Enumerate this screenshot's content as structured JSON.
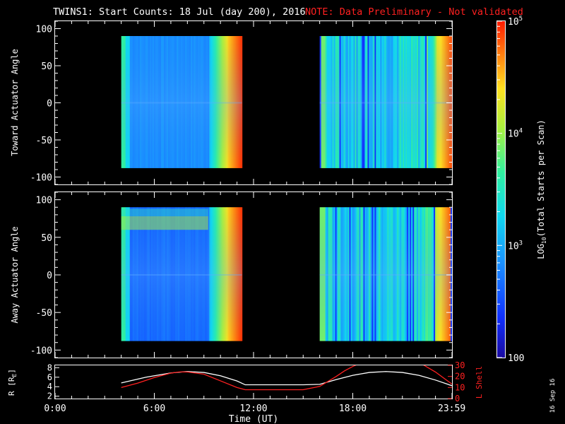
{
  "title": {
    "main": "TWINS1: Start Counts: 18 Jul (day 200), 2016",
    "note": "NOTE: Data Preliminary - Not validated"
  },
  "date_stamp": "16 Sep 16",
  "colors": {
    "note": "#ff2020",
    "axes": "#ffffff",
    "lshell": "#ff2020",
    "radius": "#ffffff",
    "background": "#000000"
  },
  "chart_data": [
    {
      "type": "heatmap",
      "ylabel": "Toward Actuator Angle",
      "xlim_hours": [
        0,
        24
      ],
      "ylim": [
        -110,
        110
      ],
      "yticks": [
        100,
        50,
        0,
        -50,
        -100
      ],
      "xtick_labels": [],
      "scale": "log",
      "data_blocks": [
        {
          "start_hour": 4.0,
          "end_hour": 11.3,
          "angle_range": [
            -88,
            90
          ]
        },
        {
          "start_hour": 16.0,
          "end_hour": 24.0,
          "angle_range": [
            -88,
            90
          ]
        }
      ]
    },
    {
      "type": "heatmap",
      "ylabel": "Away Actuator Angle",
      "xlim_hours": [
        0,
        24
      ],
      "ylim": [
        -110,
        110
      ],
      "yticks": [
        100,
        50,
        0,
        -50,
        -100
      ],
      "xtick_labels": [],
      "scale": "log",
      "data_blocks": [
        {
          "start_hour": 4.0,
          "end_hour": 11.3,
          "angle_range": [
            -88,
            90
          ]
        },
        {
          "start_hour": 16.0,
          "end_hour": 24.0,
          "angle_range": [
            -88,
            90
          ]
        }
      ]
    },
    {
      "type": "line",
      "ylabel_left": "R [R",
      "ylabel_left_sub": "E",
      "ylabel_left_close": "]",
      "ylabel_right": "L Shell",
      "xlabel": "Time (UT)",
      "xlim_hours": [
        0,
        24
      ],
      "ylim_left": [
        1.5,
        8.5
      ],
      "ylim_right": [
        0,
        30
      ],
      "yticks_left": [
        8,
        6,
        4,
        2
      ],
      "yticks_right": [
        30,
        20,
        10,
        0
      ],
      "xticks_hours": [
        0,
        6,
        12,
        18,
        23.983
      ],
      "xtick_labels": [
        "0:00",
        "6:00",
        "12:00",
        "18:00",
        "23:59"
      ],
      "series": [
        {
          "name": "",
          "axis": "left",
          "x": [
            4.0,
            5.5,
            7.0,
            8.0,
            9.0,
            10.0,
            11.0,
            11.5,
            12.0,
            13.0,
            14.0,
            15.0,
            16.0,
            17.0,
            18.0,
            19.0,
            20.0,
            21.0,
            22.0,
            23.0,
            24.0
          ],
          "y": [
            4.8,
            6.0,
            6.9,
            7.2,
            7.0,
            6.3,
            5.2,
            4.4,
            4.4,
            4.4,
            4.4,
            4.4,
            4.5,
            5.5,
            6.4,
            7.0,
            7.2,
            7.0,
            6.4,
            5.4,
            4.2
          ]
        },
        {
          "name": "",
          "axis": "right",
          "x": [
            4.0,
            5.0,
            6.0,
            7.0,
            7.5,
            8.0,
            9.0,
            10.0,
            11.0,
            11.5,
            12.0,
            13.0,
            14.0,
            15.0,
            16.0,
            17.0,
            17.5,
            18.0,
            18.3
          ],
          "y": [
            10,
            14,
            19,
            23,
            24,
            24,
            22,
            16,
            10,
            8,
            8,
            8,
            8,
            8,
            11,
            20,
            25,
            29,
            31
          ]
        },
        {
          "name": "",
          "axis": "right",
          "x": [
            22.2,
            23.0,
            24.0
          ],
          "y": [
            31,
            24,
            13
          ]
        }
      ]
    }
  ],
  "colorbar": {
    "label_log": "LOG",
    "label_sub": "10",
    "label_rest": "(Total Starts per Scan)",
    "ticks": [
      {
        "base": "10",
        "exp": "5",
        "value": 100000
      },
      {
        "base": "10",
        "exp": "4",
        "value": 10000
      },
      {
        "base": "10",
        "exp": "3",
        "value": 1000
      },
      {
        "base": "100",
        "exp": "",
        "value": 100
      }
    ],
    "range": [
      100,
      100000
    ]
  }
}
